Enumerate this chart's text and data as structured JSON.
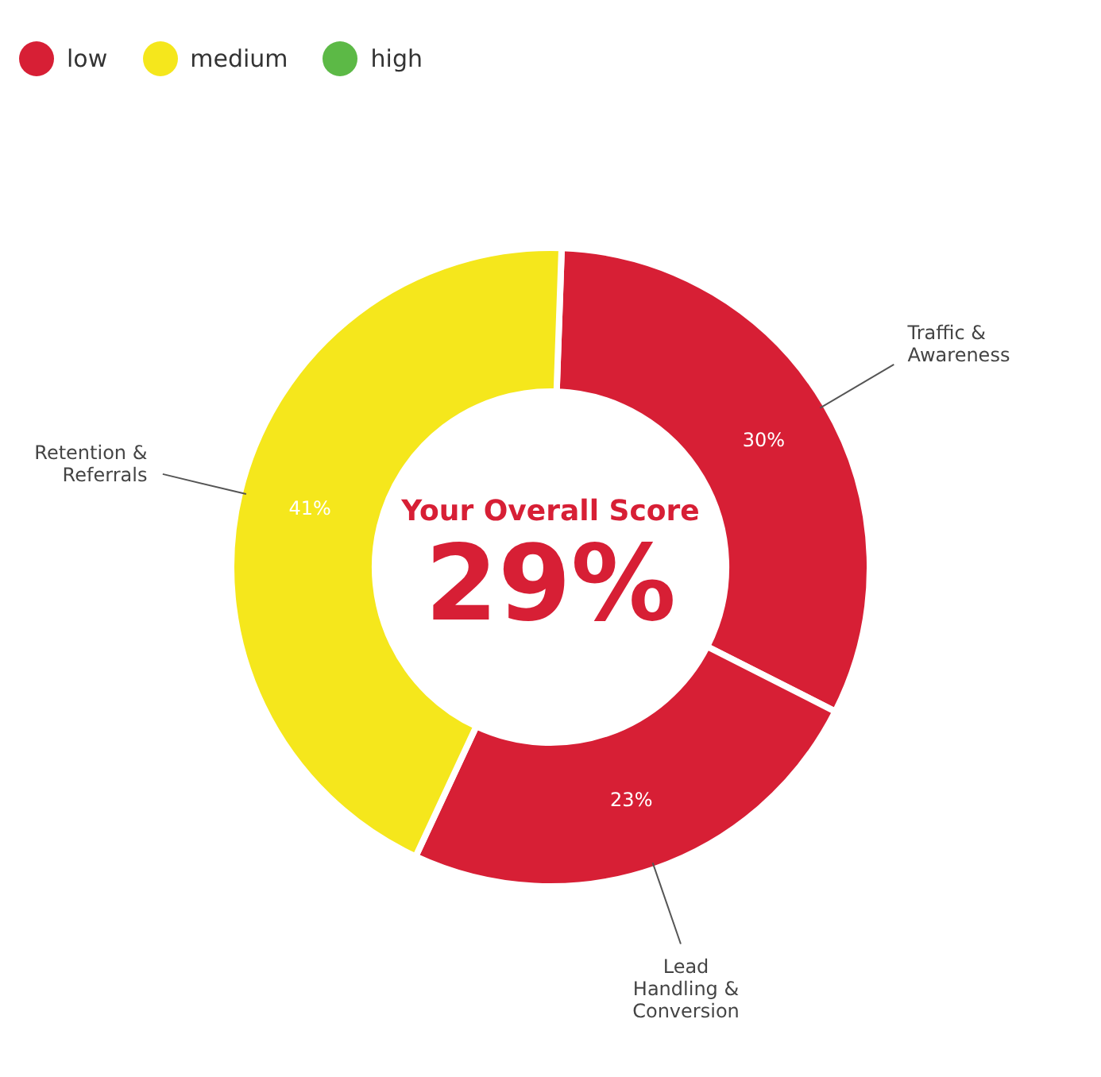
{
  "chart_data": [
    {
      "type": "donut",
      "title": "Your Overall Score",
      "subtitle": "29%",
      "categories": [
        "Traffic & Awareness",
        "Lead Handling & Conversion",
        "Retention & Referrals"
      ],
      "values": [
        30,
        23,
        41
      ],
      "value_labels": [
        "30%",
        "23%",
        "41%"
      ],
      "colors": [
        "#d71f35",
        "#d71f35",
        "#f5e71c"
      ]
    },
    {
      "type": "other",
      "categories": [
        "low",
        "medium",
        "high"
      ],
      "colors": [
        "#d71f35",
        "#f5e71c",
        "#5cb946"
      ]
    }
  ]
}
